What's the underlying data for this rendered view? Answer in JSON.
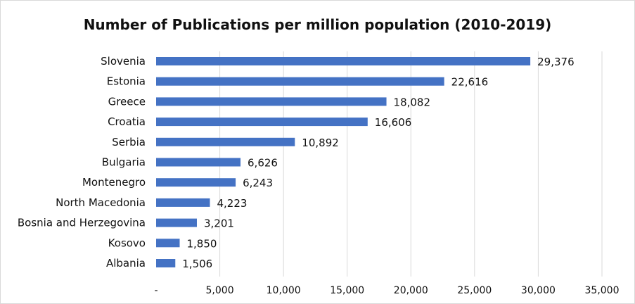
{
  "chart_data": {
    "type": "bar",
    "orientation": "horizontal",
    "title": "Number of Publications per million population (2010-2019)",
    "xlabel": "",
    "ylabel": "",
    "categories": [
      "Slovenia",
      "Estonia",
      "Greece",
      "Croatia",
      "Serbia",
      "Bulgaria",
      "Montenegro",
      "North Macedonia",
      "Bosnia and Herzegovina",
      "Kosovo",
      "Albania"
    ],
    "values": [
      29376,
      22616,
      18082,
      16606,
      10892,
      6626,
      6243,
      4223,
      3201,
      1850,
      1506
    ],
    "value_labels": [
      "29,376",
      "22,616",
      "18,082",
      "16,606",
      "10,892",
      "6,626",
      "6,243",
      "4,223",
      "3,201",
      "1,850",
      "1,506"
    ],
    "xlim": [
      0,
      35000
    ],
    "x_ticks": [
      0,
      5000,
      10000,
      15000,
      20000,
      25000,
      30000,
      35000
    ],
    "x_tick_labels": [
      "-",
      "5,000",
      "10,000",
      "15,000",
      "20,000",
      "25,000",
      "30,000",
      "35,000"
    ],
    "grid": true,
    "legend": "none",
    "colors": {
      "bar": "#4472C4",
      "grid": "#d9d9d9",
      "text": "#111111"
    }
  }
}
